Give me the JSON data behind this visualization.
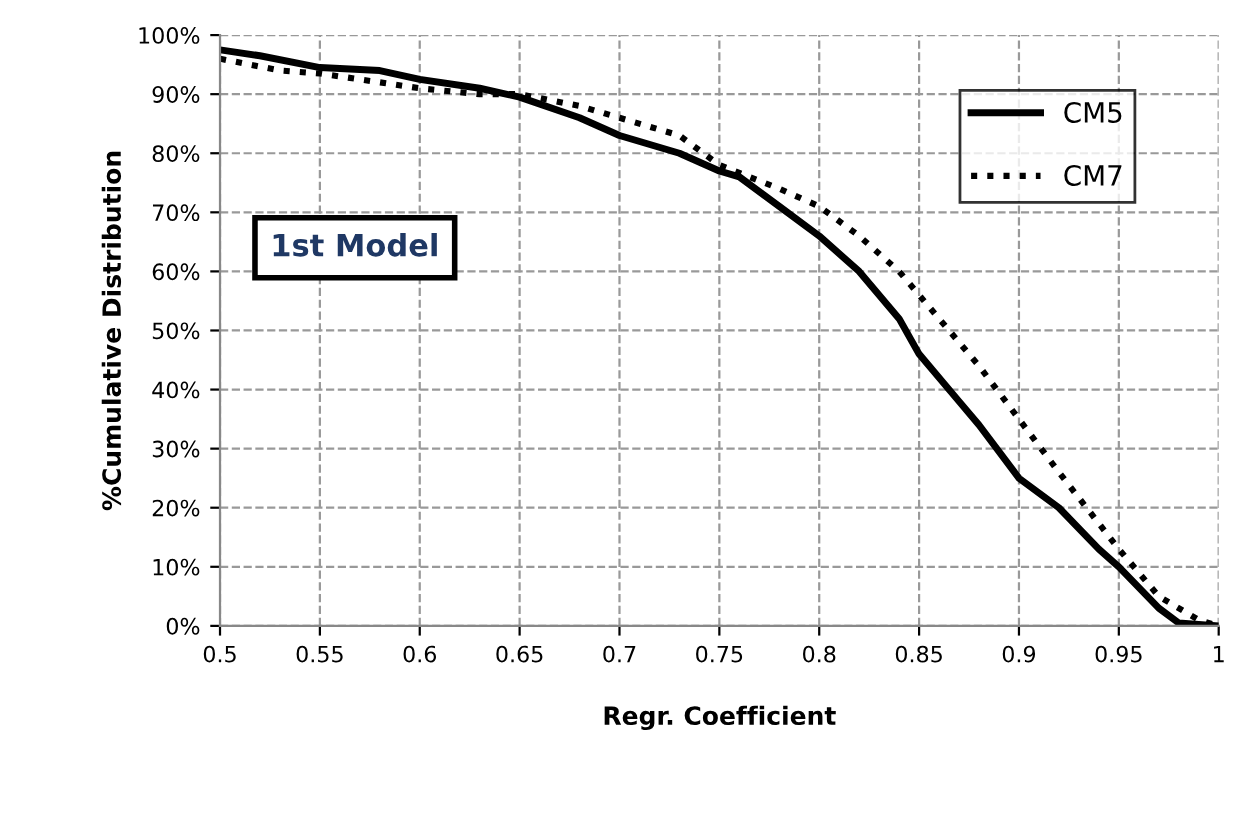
{
  "chart_data": {
    "type": "line",
    "xlabel": "Regr. Coefficient",
    "ylabel": "%Cumulative Distribution",
    "annotations": [
      "1st Model"
    ],
    "xlim": [
      0.5,
      1
    ],
    "xticks": [
      0.5,
      0.55,
      0.6,
      0.65,
      0.7,
      0.75,
      0.8,
      0.85,
      0.9,
      0.95,
      1
    ],
    "ylim": [
      0,
      100
    ],
    "yticks": [
      {
        "value": 0,
        "label": "0%"
      },
      {
        "value": 10,
        "label": "10%"
      },
      {
        "value": 20,
        "label": "20%"
      },
      {
        "value": 30,
        "label": "30%"
      },
      {
        "value": 40,
        "label": "40%"
      },
      {
        "value": 50,
        "label": "50%"
      },
      {
        "value": 60,
        "label": "60%"
      },
      {
        "value": 70,
        "label": "70%"
      },
      {
        "value": 80,
        "label": "80%"
      },
      {
        "value": 90,
        "label": "90%"
      },
      {
        "value": 100,
        "label": "100%"
      }
    ],
    "grid": true,
    "legend": "top right",
    "series": [
      {
        "name": "CM5",
        "color": "#000000",
        "line_style": "solid",
        "x": [
          0.5,
          0.52,
          0.55,
          0.58,
          0.6,
          0.63,
          0.65,
          0.68,
          0.7,
          0.73,
          0.75,
          0.76,
          0.78,
          0.8,
          0.82,
          0.84,
          0.85,
          0.87,
          0.88,
          0.9,
          0.92,
          0.94,
          0.95,
          0.97,
          0.98,
          1.0
        ],
        "values": [
          97.5,
          96.5,
          94.5,
          94,
          92.5,
          91,
          89.5,
          86,
          83,
          80,
          77,
          76,
          71,
          66,
          60,
          52,
          46,
          38,
          34,
          25,
          20,
          13,
          10,
          3,
          0.5,
          0
        ]
      },
      {
        "name": "CM7",
        "color": "#000000",
        "line_style": "dotted",
        "x": [
          0.5,
          0.53,
          0.55,
          0.58,
          0.6,
          0.63,
          0.65,
          0.68,
          0.7,
          0.73,
          0.75,
          0.78,
          0.8,
          0.82,
          0.84,
          0.85,
          0.88,
          0.9,
          0.92,
          0.95,
          0.97,
          0.99,
          1.0
        ],
        "values": [
          96,
          94,
          93.5,
          92,
          91,
          90,
          90,
          88,
          86,
          83,
          78,
          74,
          71,
          66,
          60,
          56,
          44,
          35,
          26,
          13,
          5,
          1,
          0
        ]
      }
    ]
  }
}
